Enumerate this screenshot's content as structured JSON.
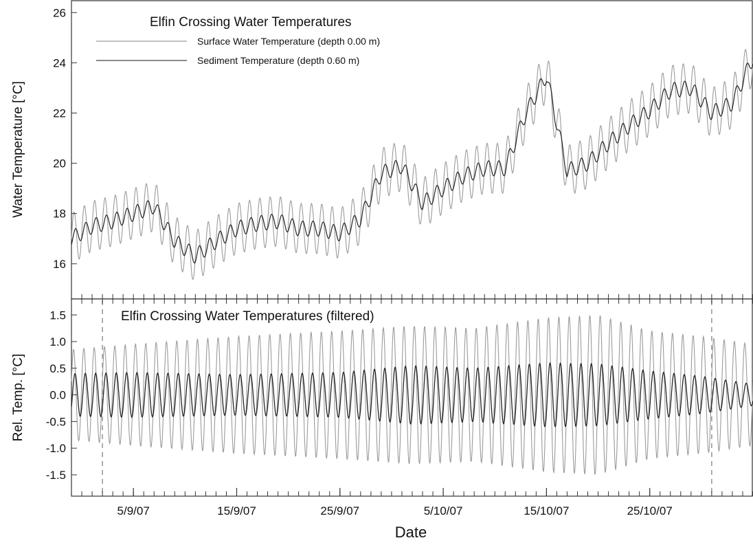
{
  "chart_data": [
    {
      "type": "line",
      "title": "Elfin Crossing Water Temperatures",
      "ylabel": "Water Temperature [°C]",
      "xlabel": "Date",
      "ylim": [
        14.6,
        26.5
      ],
      "xlim": [
        "2007-08-30",
        "2007-11-04"
      ],
      "yticks": [
        16,
        18,
        20,
        22,
        24,
        26
      ],
      "ytick_labels": [
        "16",
        "18",
        "20",
        "22",
        "24",
        "26"
      ],
      "legend_position": "top-left",
      "grid": false,
      "series": [
        {
          "name": "Surface Water Temperature (depth 0.00 m)",
          "color": "#9a9a9a",
          "daily_oscillation": "large",
          "x": [
            "2007-08-30",
            "2007-09-01",
            "2007-09-03",
            "2007-09-05",
            "2007-09-07",
            "2007-09-09",
            "2007-09-11",
            "2007-09-13",
            "2007-09-15",
            "2007-09-17",
            "2007-09-19",
            "2007-09-21",
            "2007-09-23",
            "2007-09-25",
            "2007-09-27",
            "2007-09-29",
            "2007-10-01",
            "2007-10-03",
            "2007-10-05",
            "2007-10-07",
            "2007-10-09",
            "2007-10-11",
            "2007-10-13",
            "2007-10-15",
            "2007-10-17",
            "2007-10-19",
            "2007-10-21",
            "2007-10-23",
            "2007-10-25",
            "2007-10-27",
            "2007-10-29",
            "2007-10-31",
            "2007-11-02",
            "2007-11-04"
          ],
          "y": [
            17.0,
            17.5,
            17.7,
            18.0,
            18.3,
            16.9,
            16.3,
            16.9,
            17.4,
            17.6,
            17.7,
            17.4,
            17.4,
            17.2,
            17.8,
            19.6,
            19.9,
            18.4,
            19.0,
            19.5,
            19.8,
            19.8,
            22.0,
            23.5,
            19.7,
            20.0,
            20.8,
            21.5,
            22.1,
            22.9,
            23.0,
            22.0,
            22.4,
            24.2
          ]
        },
        {
          "name": "Sediment Temperature (depth 0.60 m)",
          "color": "#222222",
          "daily_oscillation": "small",
          "x": [
            "2007-08-30",
            "2007-09-01",
            "2007-09-03",
            "2007-09-05",
            "2007-09-07",
            "2007-09-09",
            "2007-09-11",
            "2007-09-13",
            "2007-09-15",
            "2007-09-17",
            "2007-09-19",
            "2007-09-21",
            "2007-09-23",
            "2007-09-25",
            "2007-09-27",
            "2007-09-29",
            "2007-10-01",
            "2007-10-03",
            "2007-10-05",
            "2007-10-07",
            "2007-10-09",
            "2007-10-11",
            "2007-10-13",
            "2007-10-15",
            "2007-10-17",
            "2007-10-19",
            "2007-10-21",
            "2007-10-23",
            "2007-10-25",
            "2007-10-27",
            "2007-10-29",
            "2007-10-31",
            "2007-11-02",
            "2007-11-04"
          ],
          "y": [
            17.0,
            17.5,
            17.7,
            18.0,
            18.3,
            16.9,
            16.3,
            16.9,
            17.4,
            17.6,
            17.7,
            17.4,
            17.4,
            17.2,
            17.8,
            19.6,
            19.9,
            18.4,
            19.0,
            19.5,
            19.8,
            19.8,
            22.0,
            23.5,
            19.7,
            20.0,
            20.8,
            21.5,
            22.1,
            22.9,
            23.0,
            22.0,
            22.4,
            24.2
          ]
        }
      ]
    },
    {
      "type": "line",
      "title": "Elfin Crossing Water Temperatures (filtered)",
      "ylabel": "Rel. Temp. [°C]",
      "xlabel": "Date",
      "ylim": [
        -1.9,
        1.8
      ],
      "xlim": [
        "2007-08-30",
        "2007-11-04"
      ],
      "yticks": [
        -1.5,
        -1.0,
        -0.5,
        0.0,
        0.5,
        1.0,
        1.5
      ],
      "ytick_labels": [
        "-1.5",
        "-1.0",
        "-0.5",
        "0.0",
        "0.5",
        "1.0",
        "1.5"
      ],
      "xticks": [
        "2007-09-05",
        "2007-09-15",
        "2007-09-25",
        "2007-10-05",
        "2007-10-15",
        "2007-10-25"
      ],
      "xtick_labels": [
        "5/9/07",
        "15/9/07",
        "25/9/07",
        "5/10/07",
        "15/10/07",
        "25/10/07"
      ],
      "reference_lines": [
        "2007-09-02",
        "2007-10-31"
      ],
      "grid": false,
      "series": [
        {
          "color": "#9a9a9a",
          "period_days": 1,
          "x": [
            "2007-08-30",
            "2007-09-05",
            "2007-09-15",
            "2007-09-25",
            "2007-10-02",
            "2007-10-08",
            "2007-10-15",
            "2007-10-20",
            "2007-10-25",
            "2007-10-30",
            "2007-11-04"
          ],
          "amplitude": [
            0.85,
            0.95,
            1.1,
            1.2,
            1.3,
            1.25,
            1.45,
            1.5,
            1.2,
            1.1,
            0.95
          ]
        },
        {
          "color": "#222222",
          "period_days": 1,
          "x": [
            "2007-08-30",
            "2007-09-05",
            "2007-09-15",
            "2007-09-25",
            "2007-10-02",
            "2007-10-08",
            "2007-10-15",
            "2007-10-20",
            "2007-10-25",
            "2007-10-30",
            "2007-11-04"
          ],
          "amplitude": [
            0.4,
            0.42,
            0.38,
            0.42,
            0.55,
            0.5,
            0.6,
            0.58,
            0.45,
            0.35,
            0.2
          ]
        }
      ]
    }
  ]
}
